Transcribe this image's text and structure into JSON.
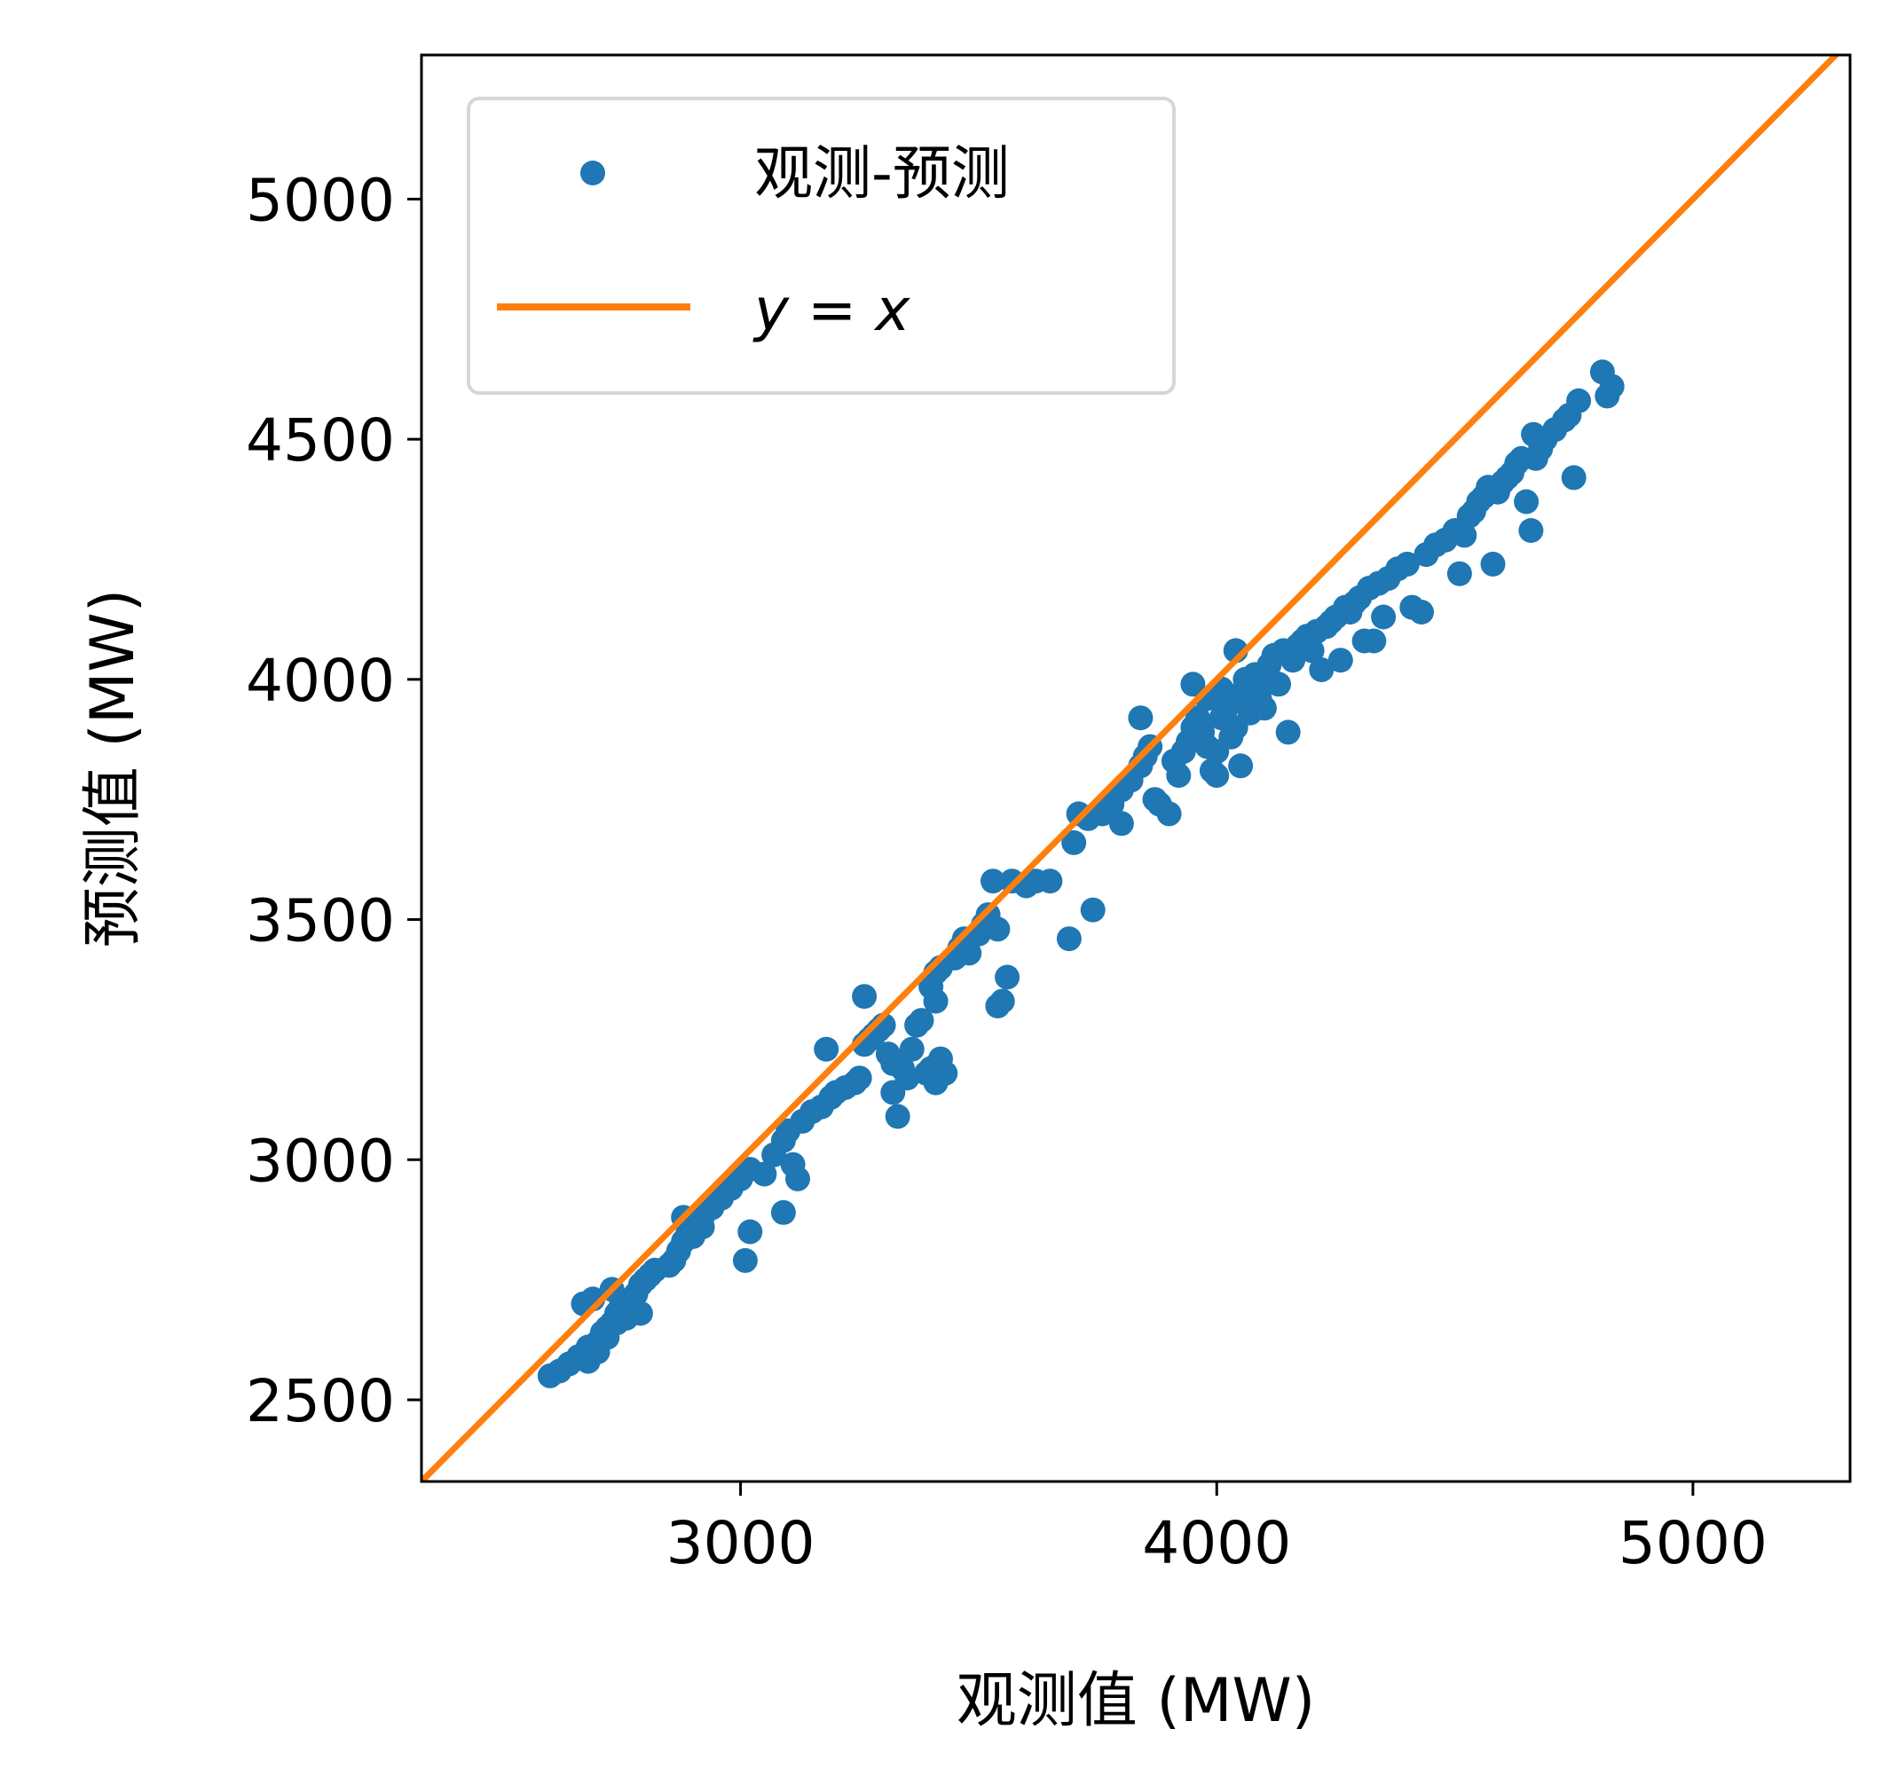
{
  "chart_data": {
    "type": "scatter",
    "title": "",
    "xlabel": "观测值 (MW)",
    "ylabel": "预测值 (MW)",
    "xlim": [
      2330,
      5330
    ],
    "ylim": [
      2330,
      5300
    ],
    "xticks": [
      3000,
      4000,
      5000
    ],
    "yticks": [
      2500,
      3000,
      3500,
      4000,
      4500,
      5000
    ],
    "xtick_labels": [
      "3000",
      "4000",
      "5000"
    ],
    "ytick_labels": [
      "2500",
      "3000",
      "3500",
      "4000",
      "4500",
      "5000"
    ],
    "grid": false,
    "legend_position": "top-left",
    "legend": [
      {
        "label": "观测-预测",
        "marker": "dot",
        "color": "#1f77b4"
      },
      {
        "label": "y = x",
        "marker": "line",
        "color": "#ff7f0e"
      }
    ],
    "series": [
      {
        "name": "观测-预测",
        "kind": "scatter",
        "color": "#1f77b4",
        "points": [
          [
            2600,
            2550
          ],
          [
            2620,
            2560
          ],
          [
            2640,
            2575
          ],
          [
            2660,
            2590
          ],
          [
            2680,
            2610
          ],
          [
            2690,
            2600
          ],
          [
            2700,
            2620
          ],
          [
            2710,
            2640
          ],
          [
            2720,
            2650
          ],
          [
            2730,
            2660
          ],
          [
            2740,
            2680
          ],
          [
            2750,
            2700
          ],
          [
            2760,
            2690
          ],
          [
            2770,
            2710
          ],
          [
            2780,
            2720
          ],
          [
            2790,
            2740
          ],
          [
            2800,
            2750
          ],
          [
            2810,
            2760
          ],
          [
            2820,
            2770
          ],
          [
            2680,
            2580
          ],
          [
            2700,
            2600
          ],
          [
            2720,
            2630
          ],
          [
            2740,
            2660
          ],
          [
            2760,
            2670
          ],
          [
            2790,
            2680
          ],
          [
            2670,
            2700
          ],
          [
            2690,
            2710
          ],
          [
            2730,
            2730
          ],
          [
            2850,
            2780
          ],
          [
            2860,
            2790
          ],
          [
            2870,
            2810
          ],
          [
            2880,
            2830
          ],
          [
            2890,
            2850
          ],
          [
            2900,
            2870
          ],
          [
            2920,
            2880
          ],
          [
            2940,
            2900
          ],
          [
            2960,
            2920
          ],
          [
            2980,
            2940
          ],
          [
            3000,
            2960
          ],
          [
            3020,
            2980
          ],
          [
            2880,
            2880
          ],
          [
            2900,
            2840
          ],
          [
            2920,
            2860
          ],
          [
            3010,
            2790
          ],
          [
            3020,
            2850
          ],
          [
            3050,
            2970
          ],
          [
            3070,
            3010
          ],
          [
            3090,
            3040
          ],
          [
            3100,
            3060
          ],
          [
            3110,
            2990
          ],
          [
            3090,
            2890
          ],
          [
            3120,
            2960
          ],
          [
            3130,
            3080
          ],
          [
            3150,
            3100
          ],
          [
            3170,
            3110
          ],
          [
            3190,
            3130
          ],
          [
            3200,
            3140
          ],
          [
            3220,
            3150
          ],
          [
            3240,
            3160
          ],
          [
            3180,
            3230
          ],
          [
            3250,
            3170
          ],
          [
            3260,
            3240
          ],
          [
            3270,
            3250
          ],
          [
            3280,
            3260
          ],
          [
            3290,
            3270
          ],
          [
            3300,
            3280
          ],
          [
            3310,
            3220
          ],
          [
            3320,
            3200
          ],
          [
            3320,
            3140
          ],
          [
            3330,
            3090
          ],
          [
            3340,
            3190
          ],
          [
            3350,
            3170
          ],
          [
            3360,
            3230
          ],
          [
            3370,
            3280
          ],
          [
            3380,
            3290
          ],
          [
            3390,
            3180
          ],
          [
            3400,
            3190
          ],
          [
            3410,
            3160
          ],
          [
            3420,
            3210
          ],
          [
            3430,
            3180
          ],
          [
            3410,
            3330
          ],
          [
            3400,
            3360
          ],
          [
            3410,
            3390
          ],
          [
            3420,
            3400
          ],
          [
            3260,
            3340
          ],
          [
            3450,
            3420
          ],
          [
            3460,
            3440
          ],
          [
            3470,
            3460
          ],
          [
            3480,
            3430
          ],
          [
            3500,
            3470
          ],
          [
            3510,
            3490
          ],
          [
            3520,
            3510
          ],
          [
            3530,
            3580
          ],
          [
            3540,
            3320
          ],
          [
            3550,
            3330
          ],
          [
            3560,
            3380
          ],
          [
            3540,
            3480
          ],
          [
            3570,
            3580
          ],
          [
            3600,
            3570
          ],
          [
            3620,
            3580
          ],
          [
            3650,
            3580
          ],
          [
            3690,
            3460
          ],
          [
            3700,
            3660
          ],
          [
            3710,
            3720
          ],
          [
            3730,
            3710
          ],
          [
            3740,
            3520
          ],
          [
            3760,
            3720
          ],
          [
            3780,
            3740
          ],
          [
            3800,
            3700
          ],
          [
            3800,
            3770
          ],
          [
            3820,
            3790
          ],
          [
            3840,
            3820
          ],
          [
            3850,
            3840
          ],
          [
            3860,
            3860
          ],
          [
            3870,
            3750
          ],
          [
            3880,
            3740
          ],
          [
            3900,
            3720
          ],
          [
            3910,
            3830
          ],
          [
            3920,
            3800
          ],
          [
            3930,
            3850
          ],
          [
            3940,
            3870
          ],
          [
            3950,
            3900
          ],
          [
            3960,
            3920
          ],
          [
            3970,
            3890
          ],
          [
            3980,
            3860
          ],
          [
            3990,
            3810
          ],
          [
            4000,
            3850
          ],
          [
            4010,
            3920
          ],
          [
            4020,
            3940
          ],
          [
            4030,
            3880
          ],
          [
            4040,
            3900
          ],
          [
            4050,
            3970
          ],
          [
            4060,
            3960
          ],
          [
            4070,
            3990
          ],
          [
            4080,
            4010
          ],
          [
            4090,
            4000
          ],
          [
            4100,
            3940
          ],
          [
            4110,
            4030
          ],
          [
            4120,
            4050
          ],
          [
            4130,
            3990
          ],
          [
            4140,
            4060
          ],
          [
            4150,
            3890
          ],
          [
            4160,
            4040
          ],
          [
            4170,
            4070
          ],
          [
            4180,
            4080
          ],
          [
            4190,
            4090
          ],
          [
            4200,
            4060
          ],
          [
            4210,
            4100
          ],
          [
            4220,
            4020
          ],
          [
            4230,
            4110
          ],
          [
            4240,
            4120
          ],
          [
            4250,
            4130
          ],
          [
            4260,
            4040
          ],
          [
            4270,
            4150
          ],
          [
            4280,
            4140
          ],
          [
            4290,
            4160
          ],
          [
            4300,
            4170
          ],
          [
            4310,
            4080
          ],
          [
            4320,
            4190
          ],
          [
            3840,
            3920
          ],
          [
            3950,
            3990
          ],
          [
            4040,
            4060
          ],
          [
            4050,
            3820
          ],
          [
            4000,
            3800
          ],
          [
            3980,
            3960
          ],
          [
            4010,
            3980
          ],
          [
            4060,
            4000
          ],
          [
            4070,
            3930
          ],
          [
            4090,
            3960
          ],
          [
            4100,
            3990
          ],
          [
            4330,
            4080
          ],
          [
            4340,
            4200
          ],
          [
            4350,
            4130
          ],
          [
            4360,
            4210
          ],
          [
            4380,
            4230
          ],
          [
            4400,
            4240
          ],
          [
            4410,
            4150
          ],
          [
            4430,
            4140
          ],
          [
            4440,
            4260
          ],
          [
            4460,
            4280
          ],
          [
            4480,
            4290
          ],
          [
            4500,
            4310
          ],
          [
            4510,
            4220
          ],
          [
            4520,
            4300
          ],
          [
            4530,
            4340
          ],
          [
            4540,
            4350
          ],
          [
            4550,
            4370
          ],
          [
            4560,
            4380
          ],
          [
            4570,
            4400
          ],
          [
            4580,
            4240
          ],
          [
            4590,
            4390
          ],
          [
            4600,
            4410
          ],
          [
            4610,
            4420
          ],
          [
            4620,
            4430
          ],
          [
            4630,
            4450
          ],
          [
            4640,
            4460
          ],
          [
            4650,
            4370
          ],
          [
            4660,
            4310
          ],
          [
            4670,
            4460
          ],
          [
            4680,
            4480
          ],
          [
            4690,
            4500
          ],
          [
            4710,
            4520
          ],
          [
            4730,
            4540
          ],
          [
            4740,
            4550
          ],
          [
            4750,
            4420
          ],
          [
            4760,
            4580
          ],
          [
            4810,
            4640
          ],
          [
            4820,
            4590
          ],
          [
            4830,
            4610
          ],
          [
            4665,
            4510
          ]
        ]
      },
      {
        "name": "y = x",
        "kind": "line",
        "color": "#ff7f0e",
        "points": [
          [
            2330,
            2330
          ],
          [
            5330,
            5330
          ]
        ]
      }
    ]
  }
}
